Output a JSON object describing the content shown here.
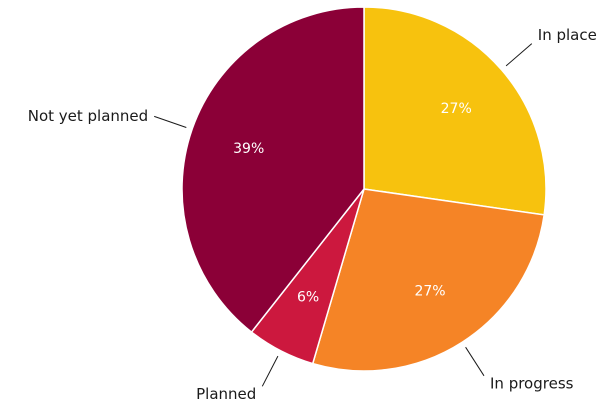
{
  "chart_data": {
    "type": "pie",
    "title": "",
    "legend": "none",
    "slices": [
      {
        "label": "In place",
        "value": 27,
        "value_label": "27%",
        "color": "#F7C20E"
      },
      {
        "label": "In progress",
        "value": 27,
        "value_label": "27%",
        "color": "#F58426"
      },
      {
        "label": "Planned",
        "value": 6,
        "value_label": "6%",
        "color": "#CC183E"
      },
      {
        "label": "Not yet planned",
        "value": 39,
        "value_label": "39%",
        "color": "#8B0037"
      }
    ]
  }
}
